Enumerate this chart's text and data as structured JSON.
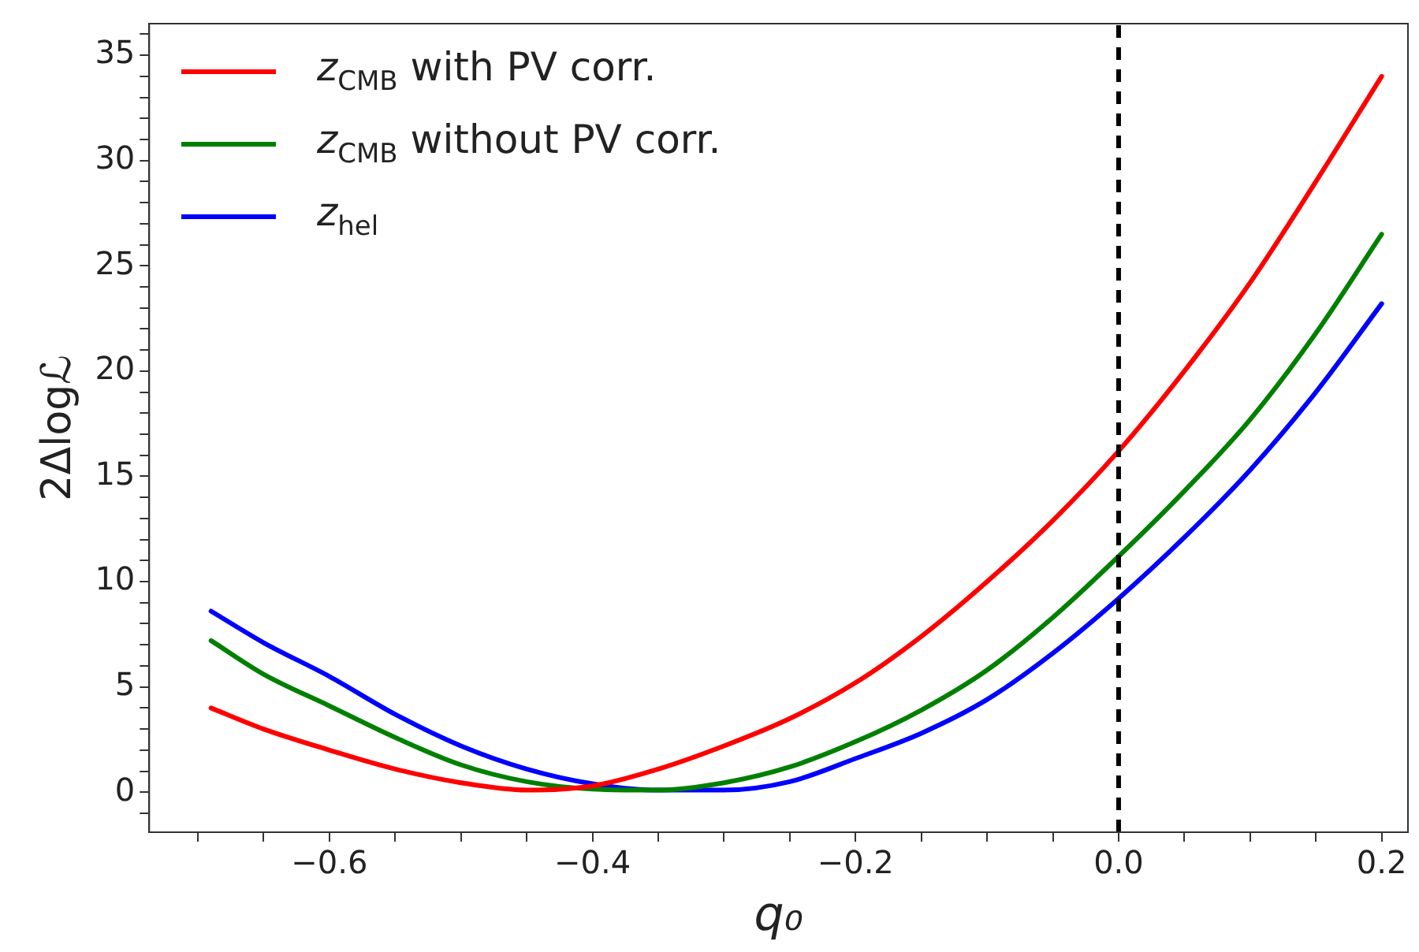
{
  "chart_data": {
    "type": "line",
    "xlabel": "q₀",
    "ylabel": "2Δlogℒ",
    "x": [
      -0.69,
      -0.65,
      -0.6,
      -0.55,
      -0.5,
      -0.45,
      -0.4,
      -0.35,
      -0.3,
      -0.25,
      -0.2,
      -0.15,
      -0.1,
      -0.05,
      0,
      0.05,
      0.1,
      0.15,
      0.2
    ],
    "series": [
      {
        "name": "z$_{CMB}$ with PV corr.",
        "color": "#ff0000",
        "values": [
          4.0,
          3.0,
          2.0,
          1.1,
          0.45,
          0.1,
          0.3,
          1.1,
          2.2,
          3.5,
          5.2,
          7.4,
          10.0,
          12.9,
          16.2,
          20.0,
          24.2,
          29.0,
          34.0
        ]
      },
      {
        "name": "z$_{CMB}$ without PV corr.",
        "color": "#008000",
        "values": [
          7.2,
          5.6,
          4.1,
          2.6,
          1.3,
          0.5,
          0.15,
          0.1,
          0.45,
          1.2,
          2.4,
          3.9,
          5.8,
          8.3,
          11.2,
          14.3,
          17.7,
          21.8,
          26.5
        ]
      },
      {
        "name": "z$_{hel}$",
        "color": "#0000ff",
        "values": [
          8.6,
          7.1,
          5.5,
          3.7,
          2.2,
          1.1,
          0.4,
          0.1,
          0.1,
          0.5,
          1.6,
          2.8,
          4.4,
          6.6,
          9.2,
          12.1,
          15.3,
          19.0,
          23.2
        ]
      }
    ],
    "xlim": [
      -0.737,
      0.22
    ],
    "ylim": [
      -1.9,
      36.5
    ],
    "xticks": [
      {
        "value": -0.7,
        "label": null
      },
      {
        "value": -0.65,
        "label": null
      },
      {
        "value": -0.6,
        "label": "−0.6"
      },
      {
        "value": -0.55,
        "label": null
      },
      {
        "value": -0.5,
        "label": null
      },
      {
        "value": -0.45,
        "label": null
      },
      {
        "value": -0.4,
        "label": "−0.4"
      },
      {
        "value": -0.35,
        "label": null
      },
      {
        "value": -0.3,
        "label": null
      },
      {
        "value": -0.25,
        "label": null
      },
      {
        "value": -0.2,
        "label": "−0.2"
      },
      {
        "value": -0.15,
        "label": null
      },
      {
        "value": -0.1,
        "label": null
      },
      {
        "value": -0.05,
        "label": null
      },
      {
        "value": 0,
        "label": "0.0"
      },
      {
        "value": 0.05,
        "label": null
      },
      {
        "value": 0.1,
        "label": null
      },
      {
        "value": 0.15,
        "label": null
      },
      {
        "value": 0.2,
        "label": "0.2"
      }
    ],
    "yticks": [
      {
        "value": -1,
        "label": null
      },
      0,
      {
        "value": 1,
        "label": null
      },
      {
        "value": 2,
        "label": null
      },
      {
        "value": 3,
        "label": null
      },
      {
        "value": 4,
        "label": null
      },
      5,
      {
        "value": 6,
        "label": null
      },
      {
        "value": 7,
        "label": null
      },
      {
        "value": 8,
        "label": null
      },
      {
        "value": 9,
        "label": null
      },
      10,
      {
        "value": 11,
        "label": null
      },
      {
        "value": 12,
        "label": null
      },
      {
        "value": 13,
        "label": null
      },
      {
        "value": 14,
        "label": null
      },
      15,
      {
        "value": 16,
        "label": null
      },
      {
        "value": 17,
        "label": null
      },
      {
        "value": 18,
        "label": null
      },
      {
        "value": 19,
        "label": null
      },
      20,
      {
        "value": 21,
        "label": null
      },
      {
        "value": 22,
        "label": null
      },
      {
        "value": 23,
        "label": null
      },
      {
        "value": 24,
        "label": null
      },
      25,
      {
        "value": 26,
        "label": null
      },
      {
        "value": 27,
        "label": null
      },
      {
        "value": 28,
        "label": null
      },
      {
        "value": 29,
        "label": null
      },
      30,
      {
        "value": 31,
        "label": null
      },
      {
        "value": 32,
        "label": null
      },
      {
        "value": 33,
        "label": null
      },
      {
        "value": 34,
        "label": null
      },
      35,
      {
        "value": 36,
        "label": null
      }
    ],
    "ref_lines": [
      {
        "axis": "x",
        "value": 0,
        "color": "#000000",
        "line_style": "dashed"
      }
    ],
    "grid": false,
    "legend": "top left",
    "marker": "none",
    "line_style": "solid"
  }
}
